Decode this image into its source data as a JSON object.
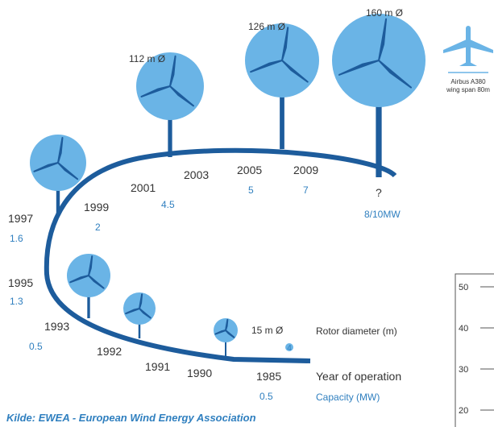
{
  "rotors": [
    "160 m Ø",
    "126 m Ø",
    "112 m Ø",
    "15 m Ø"
  ],
  "small_marker": "4",
  "airplane": {
    "name": "Airbus A380",
    "note": "wing span 80m"
  },
  "milestones": [
    {
      "year": "1985",
      "capacity": "0.5"
    },
    {
      "year": "1990"
    },
    {
      "year": "1991"
    },
    {
      "year": "1992"
    },
    {
      "year": "1993",
      "capacity": "0.5"
    },
    {
      "year": "1995",
      "capacity": "1.3"
    },
    {
      "year": "1997",
      "capacity": "1.6"
    },
    {
      "year": "1999",
      "capacity": "2"
    },
    {
      "year": "2001",
      "capacity": "4.5"
    },
    {
      "year": "2003"
    },
    {
      "year": "2005",
      "capacity": "5"
    },
    {
      "year": "2009",
      "capacity": "7"
    },
    {
      "year": "?",
      "capacity": "8/10MW"
    }
  ],
  "legend": {
    "rotor": "Rotor diameter (m)",
    "year": "Year of operation",
    "capacity": "Capacity (MW)"
  },
  "side_axis": [
    "50",
    "40",
    "30",
    "20"
  ],
  "source": "Kilde: EWEA - European Wind Energy Association"
}
